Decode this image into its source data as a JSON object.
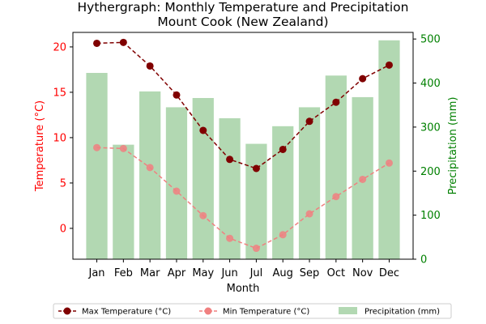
{
  "chart_data": {
    "type": "bar+line",
    "title_lines": [
      "Hythergraph: Monthly Temperature and Precipitation",
      "Mount Cook (New Zealand)"
    ],
    "xlabel": "Month",
    "ylabel_left": "Temperature (°C)",
    "ylabel_right": "Precipitation (mm)",
    "categories": [
      "Jan",
      "Feb",
      "Mar",
      "Apr",
      "May",
      "Jun",
      "Jul",
      "Aug",
      "Sep",
      "Oct",
      "Nov",
      "Dec"
    ],
    "ylim_left": [
      -3.4,
      21.6
    ],
    "ylim_right": [
      0,
      515
    ],
    "yticks_left": [
      0,
      5,
      10,
      15,
      20
    ],
    "yticks_right": [
      0,
      100,
      200,
      300,
      400,
      500
    ],
    "grid": false,
    "legend_position": "bottom",
    "series": [
      {
        "name": "Max Temperature (°C)",
        "axis": "left",
        "kind": "line",
        "color": "#800000",
        "values": [
          20.4,
          20.5,
          17.9,
          14.7,
          10.8,
          7.6,
          6.6,
          8.7,
          11.8,
          13.9,
          16.5,
          18.0
        ]
      },
      {
        "name": "Min Temperature (°C)",
        "axis": "left",
        "kind": "line",
        "color": "#f08080",
        "values": [
          8.9,
          8.8,
          6.7,
          4.1,
          1.4,
          -1.1,
          -2.2,
          -0.7,
          1.6,
          3.5,
          5.4,
          7.2
        ]
      },
      {
        "name": "Precipitation (mm)",
        "axis": "right",
        "kind": "bar",
        "color": "#b2d8b2",
        "values": [
          423,
          260,
          381,
          345,
          366,
          320,
          262,
          302,
          345,
          417,
          368,
          497
        ]
      }
    ]
  }
}
